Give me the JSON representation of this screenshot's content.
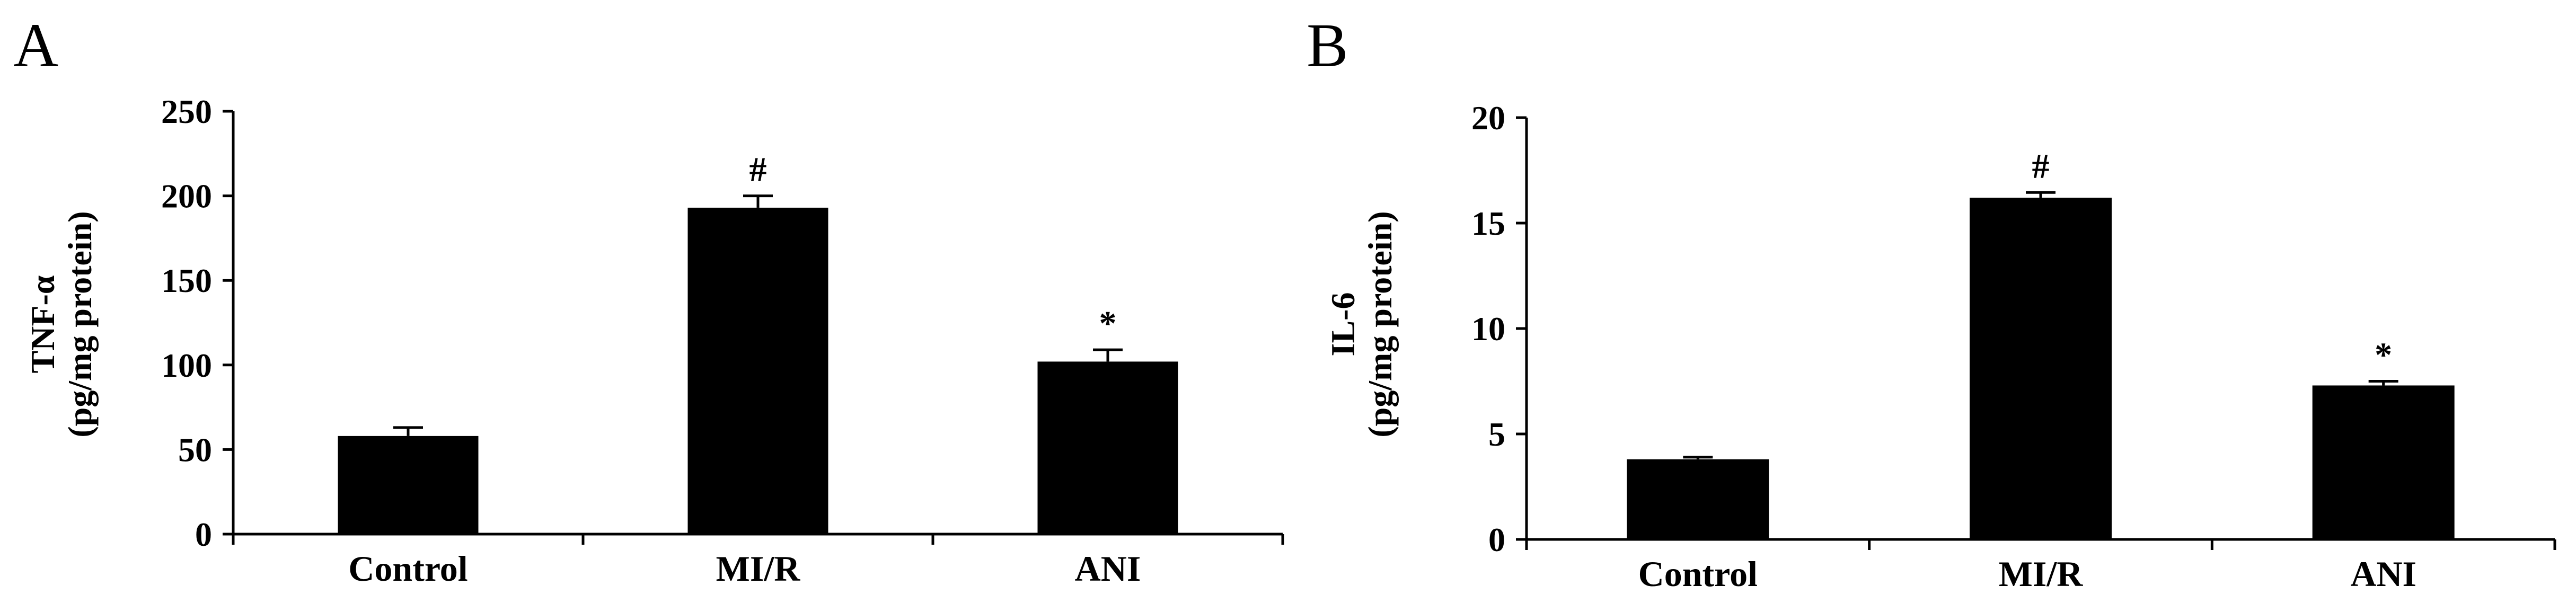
{
  "chart_data": [
    {
      "panel": "A",
      "type": "bar",
      "ylabel_line1": "TNF-α",
      "ylabel_line2": "(pg/mg protein)",
      "ylim": [
        0,
        250
      ],
      "yticks": [
        "0",
        "50",
        "100",
        "150",
        "200",
        "250"
      ],
      "categories": [
        "Control",
        "MI/R",
        "ANI"
      ],
      "values": [
        58,
        193,
        102
      ],
      "errors": [
        5,
        7,
        7
      ],
      "annotations": [
        "",
        "#",
        "*"
      ],
      "bar_color": "#000000"
    },
    {
      "panel": "B",
      "type": "bar",
      "ylabel_line1": "IL-6",
      "ylabel_line2": "(pg/mg protein)",
      "ylim": [
        0,
        20
      ],
      "yticks": [
        "0",
        "5",
        "10",
        "15",
        "20"
      ],
      "categories": [
        "Control",
        "MI/R",
        "ANI"
      ],
      "values": [
        3.8,
        16.2,
        7.3
      ],
      "errors": [
        0.1,
        0.25,
        0.2
      ],
      "annotations": [
        "",
        "#",
        "*"
      ],
      "bar_color": "#000000"
    }
  ]
}
